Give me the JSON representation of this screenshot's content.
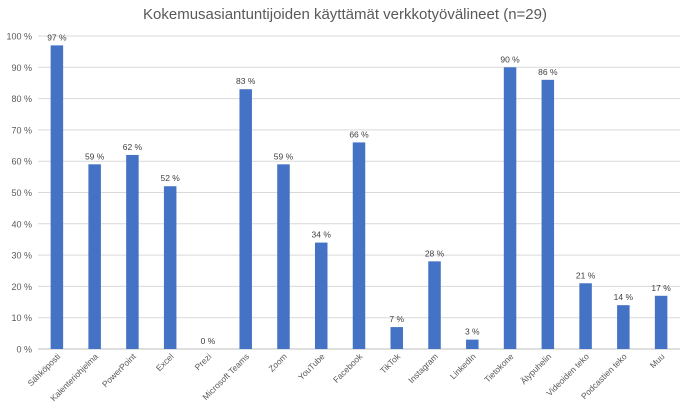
{
  "chart_data": {
    "type": "bar",
    "title": "Kokemusasiantuntijoiden käyttämät verkkotyövälineet (n=29)",
    "xlabel": "",
    "ylabel": "",
    "ylim": [
      0,
      100
    ],
    "yticks": [
      0,
      10,
      20,
      30,
      40,
      50,
      60,
      70,
      80,
      90,
      100
    ],
    "ytick_suffix": " %",
    "grid": true,
    "legend": "none",
    "bar_color": "#4472C4",
    "categories": [
      "Sähköposti",
      "Kalenteriohjelma",
      "PowerPoint",
      "Excel",
      "Prezi",
      "Microsoft Teams",
      "Zoom",
      "YouTube",
      "Facebook",
      "TikTok",
      "Instagram",
      "LinkedIn",
      "Tietokone",
      "Älypuhelin",
      "Videoiden teko",
      "Podcastien teko",
      "Muu"
    ],
    "values": [
      97,
      59,
      62,
      52,
      0,
      83,
      59,
      34,
      66,
      7,
      28,
      3,
      90,
      86,
      21,
      14,
      17
    ],
    "data_labels": [
      "97 %",
      "59 %",
      "62 %",
      "52 %",
      "0 %",
      "83 %",
      "59 %",
      "34 %",
      "66 %",
      "7 %",
      "28 %",
      "3 %",
      "90 %",
      "86 %",
      "21 %",
      "14 %",
      "17 %"
    ]
  }
}
